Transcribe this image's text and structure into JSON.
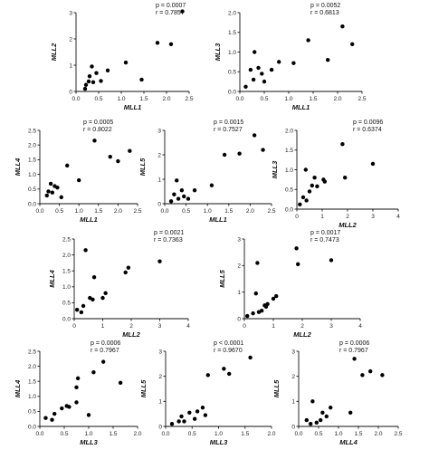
{
  "chart_data": [
    {
      "type": "scatter",
      "xlabel": "MLL1",
      "ylabel": "MLL2",
      "p_label": "p = 0.0007",
      "r_label": "r = 0.7857",
      "xlim": [
        0,
        2.5
      ],
      "ylim": [
        0,
        3
      ],
      "xticks": [
        "0.0",
        "0.5",
        "1.0",
        "1.5",
        "2.0",
        "2.5"
      ],
      "yticks": [
        "0",
        "1",
        "2",
        "3"
      ],
      "points": [
        [
          0.2,
          0.1
        ],
        [
          0.22,
          0.25
        ],
        [
          0.28,
          0.38
        ],
        [
          0.3,
          0.58
        ],
        [
          0.35,
          0.95
        ],
        [
          0.38,
          0.35
        ],
        [
          0.45,
          0.7
        ],
        [
          0.55,
          0.4
        ],
        [
          0.7,
          0.8
        ],
        [
          1.1,
          1.1
        ],
        [
          1.45,
          0.45
        ],
        [
          1.8,
          1.85
        ],
        [
          2.1,
          1.8
        ],
        [
          2.35,
          3.05
        ]
      ]
    },
    {
      "type": "scatter",
      "xlabel": "MLL1",
      "ylabel": "MLL3",
      "p_label": "p = 0.0052",
      "r_label": "r = 0.6813",
      "xlim": [
        0,
        2.5
      ],
      "ylim": [
        0,
        2
      ],
      "xticks": [
        "0.0",
        "0.5",
        "1.0",
        "1.5",
        "2.0",
        "2.5"
      ],
      "yticks": [
        "0.0",
        "0.5",
        "1.0",
        "1.5",
        "2.0"
      ],
      "points": [
        [
          0.12,
          0.12
        ],
        [
          0.22,
          0.55
        ],
        [
          0.28,
          0.3
        ],
        [
          0.3,
          1.0
        ],
        [
          0.38,
          0.6
        ],
        [
          0.45,
          0.45
        ],
        [
          0.5,
          0.25
        ],
        [
          0.65,
          0.55
        ],
        [
          0.8,
          0.75
        ],
        [
          1.1,
          0.72
        ],
        [
          1.4,
          1.3
        ],
        [
          1.8,
          0.8
        ],
        [
          2.1,
          1.65
        ],
        [
          2.3,
          1.2
        ]
      ]
    },
    {
      "type": "scatter",
      "xlabel": "MLL1",
      "ylabel": "MLL4",
      "p_label": "p = 0.0005",
      "r_label": "r = 0.8022",
      "xlim": [
        0,
        2.5
      ],
      "ylim": [
        0,
        2.5
      ],
      "xticks": [
        "0.0",
        "0.5",
        "1.0",
        "1.5",
        "2.0",
        "2.5"
      ],
      "yticks": [
        "0.0",
        "0.5",
        "1.0",
        "1.5",
        "2.0",
        "2.5"
      ],
      "points": [
        [
          0.18,
          0.28
        ],
        [
          0.22,
          0.42
        ],
        [
          0.28,
          0.68
        ],
        [
          0.32,
          0.38
        ],
        [
          0.38,
          0.6
        ],
        [
          0.45,
          0.55
        ],
        [
          0.55,
          0.22
        ],
        [
          0.7,
          1.3
        ],
        [
          1.0,
          0.8
        ],
        [
          1.4,
          2.15
        ],
        [
          1.8,
          1.6
        ],
        [
          2.0,
          1.45
        ],
        [
          2.3,
          1.8
        ]
      ]
    },
    {
      "type": "scatter",
      "xlabel": "MLL1",
      "ylabel": "MLL5",
      "p_label": "p = 0.0015",
      "r_label": "r = 0.7527",
      "xlim": [
        0,
        2.5
      ],
      "ylim": [
        0,
        3
      ],
      "xticks": [
        "0.0",
        "0.5",
        "1.0",
        "1.5",
        "2.0",
        "2.5"
      ],
      "yticks": [
        "0",
        "1",
        "2",
        "3"
      ],
      "points": [
        [
          0.15,
          0.1
        ],
        [
          0.22,
          0.38
        ],
        [
          0.28,
          0.95
        ],
        [
          0.32,
          0.2
        ],
        [
          0.4,
          0.55
        ],
        [
          0.45,
          0.3
        ],
        [
          0.55,
          0.2
        ],
        [
          0.7,
          0.55
        ],
        [
          1.1,
          0.75
        ],
        [
          1.4,
          2.0
        ],
        [
          1.75,
          2.05
        ],
        [
          2.1,
          2.8
        ],
        [
          2.3,
          2.2
        ]
      ]
    },
    {
      "type": "scatter",
      "xlabel": "MLL2",
      "ylabel": "MLL3",
      "p_label": "p = 0.0096",
      "r_label": "r = 0.6374",
      "xlim": [
        0,
        4
      ],
      "ylim": [
        0,
        2
      ],
      "xticks": [
        "0",
        "1",
        "2",
        "3",
        "4"
      ],
      "yticks": [
        "0.0",
        "0.5",
        "1.0",
        "1.5",
        "2.0"
      ],
      "points": [
        [
          0.12,
          0.12
        ],
        [
          0.25,
          0.3
        ],
        [
          0.35,
          1.0
        ],
        [
          0.38,
          0.22
        ],
        [
          0.5,
          0.45
        ],
        [
          0.6,
          0.6
        ],
        [
          0.7,
          0.8
        ],
        [
          0.8,
          0.58
        ],
        [
          1.05,
          0.75
        ],
        [
          1.1,
          0.7
        ],
        [
          1.8,
          1.65
        ],
        [
          1.9,
          0.8
        ],
        [
          3.0,
          1.15
        ]
      ]
    },
    {
      "type": "scatter",
      "xlabel": "MLL2",
      "ylabel": "MLL4",
      "p_label": "p = 0.0021",
      "r_label": "r = 0.7363",
      "xlim": [
        0,
        4
      ],
      "ylim": [
        0,
        2.5
      ],
      "xticks": [
        "0",
        "1",
        "2",
        "3",
        "4"
      ],
      "yticks": [
        "0.0",
        "0.5",
        "1.0",
        "1.5",
        "2.0",
        "2.5"
      ],
      "points": [
        [
          0.1,
          0.28
        ],
        [
          0.25,
          0.2
        ],
        [
          0.32,
          0.4
        ],
        [
          0.4,
          2.15
        ],
        [
          0.55,
          0.65
        ],
        [
          0.65,
          0.6
        ],
        [
          0.7,
          1.3
        ],
        [
          1.0,
          0.65
        ],
        [
          1.1,
          0.8
        ],
        [
          1.8,
          1.45
        ],
        [
          1.9,
          1.6
        ],
        [
          3.0,
          1.8
        ]
      ]
    },
    {
      "type": "scatter",
      "xlabel": "MLL2",
      "ylabel": "MLL5",
      "p_label": "p = 0.0017",
      "r_label": "r = 0.7473",
      "xlim": [
        0,
        4
      ],
      "ylim": [
        0,
        3
      ],
      "xticks": [
        "0",
        "1",
        "2",
        "3",
        "4"
      ],
      "yticks": [
        "0",
        "1",
        "2",
        "3"
      ],
      "points": [
        [
          0.1,
          0.1
        ],
        [
          0.3,
          0.2
        ],
        [
          0.4,
          0.95
        ],
        [
          0.45,
          2.1
        ],
        [
          0.5,
          0.25
        ],
        [
          0.6,
          0.3
        ],
        [
          0.7,
          0.5
        ],
        [
          0.75,
          0.45
        ],
        [
          0.8,
          0.55
        ],
        [
          1.0,
          0.75
        ],
        [
          1.1,
          0.85
        ],
        [
          1.8,
          2.65
        ],
        [
          1.85,
          2.05
        ],
        [
          3.0,
          2.2
        ]
      ]
    },
    {
      "type": "scatter",
      "xlabel": "MLL3",
      "ylabel": "MLL4",
      "p_label": "p = 0.0006",
      "r_label": "r = 0.7967",
      "xlim": [
        0,
        2
      ],
      "ylim": [
        0,
        2.5
      ],
      "xticks": [
        "0.0",
        "0.5",
        "1.0",
        "1.5",
        "2.0"
      ],
      "yticks": [
        "0.0",
        "0.5",
        "1.0",
        "1.5",
        "2.0",
        "2.5"
      ],
      "points": [
        [
          0.12,
          0.28
        ],
        [
          0.25,
          0.22
        ],
        [
          0.3,
          0.42
        ],
        [
          0.45,
          0.6
        ],
        [
          0.55,
          0.68
        ],
        [
          0.6,
          0.65
        ],
        [
          0.75,
          0.8
        ],
        [
          0.75,
          1.3
        ],
        [
          0.78,
          1.6
        ],
        [
          1.0,
          0.38
        ],
        [
          1.1,
          1.8
        ],
        [
          1.3,
          2.15
        ],
        [
          1.65,
          1.45
        ]
      ]
    },
    {
      "type": "scatter",
      "xlabel": "MLL3",
      "ylabel": "MLL5",
      "p_label": "p < 0.0001",
      "r_label": "r = 0.9670",
      "xlim": [
        0,
        2
      ],
      "ylim": [
        0,
        3
      ],
      "xticks": [
        "0.0",
        "0.5",
        "1.0",
        "1.5",
        "2.0"
      ],
      "yticks": [
        "0",
        "1",
        "2",
        "3"
      ],
      "points": [
        [
          0.12,
          0.1
        ],
        [
          0.25,
          0.2
        ],
        [
          0.35,
          0.2
        ],
        [
          0.45,
          0.55
        ],
        [
          0.55,
          0.3
        ],
        [
          0.6,
          0.6
        ],
        [
          0.7,
          0.75
        ],
        [
          0.75,
          0.45
        ],
        [
          0.8,
          2.05
        ],
        [
          1.1,
          2.3
        ],
        [
          1.2,
          2.1
        ],
        [
          1.6,
          2.75
        ],
        [
          0.3,
          0.4
        ]
      ]
    },
    {
      "type": "scatter",
      "xlabel": "MLL4",
      "ylabel": "MLL5",
      "p_label": "p = 0.0006",
      "r_label": "r = 0.7967",
      "xlim": [
        0,
        2.5
      ],
      "ylim": [
        0,
        3
      ],
      "xticks": [
        "0.0",
        "0.5",
        "1.0",
        "1.5",
        "2.0",
        "2.5"
      ],
      "yticks": [
        "0",
        "1",
        "2",
        "3"
      ],
      "points": [
        [
          0.2,
          0.25
        ],
        [
          0.3,
          0.1
        ],
        [
          0.35,
          1.0
        ],
        [
          0.45,
          0.15
        ],
        [
          0.55,
          0.25
        ],
        [
          0.6,
          0.55
        ],
        [
          0.7,
          0.4
        ],
        [
          0.8,
          0.75
        ],
        [
          1.3,
          0.55
        ],
        [
          1.4,
          2.7
        ],
        [
          1.6,
          2.05
        ],
        [
          1.8,
          2.2
        ],
        [
          2.1,
          2.05
        ]
      ]
    }
  ]
}
